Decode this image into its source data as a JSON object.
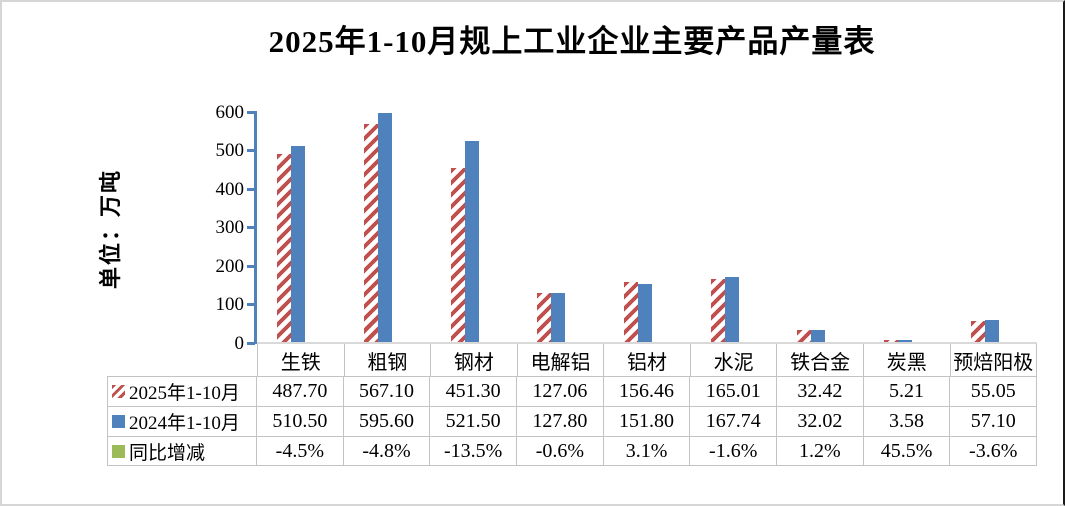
{
  "chart_data": {
    "type": "bar",
    "title": "2025年1-10月规上工业企业主要产品产量表",
    "ylabel": "单位：万吨",
    "xlabel": "",
    "ylim": [
      0,
      600
    ],
    "y_ticks": [
      0,
      100,
      200,
      300,
      400,
      500,
      600
    ],
    "grid": false,
    "legend_position": "data-table-left",
    "categories": [
      "生铁",
      "粗钢",
      "钢材",
      "电解铝",
      "铝材",
      "水泥",
      "铁合金",
      "炭黑",
      "预焙阳极"
    ],
    "series": [
      {
        "name": "2025年1-10月",
        "type": "bar",
        "style": "white-with-red-diagonal-hatch",
        "values": [
          487.7,
          567.1,
          451.3,
          127.06,
          156.46,
          165.01,
          32.42,
          5.21,
          55.05
        ]
      },
      {
        "name": "2024年1-10月",
        "type": "bar",
        "style": "solid-blue",
        "values": [
          510.5,
          595.6,
          521.5,
          127.8,
          151.8,
          167.74,
          32.02,
          3.58,
          57.1
        ]
      },
      {
        "name": "同比增减",
        "type": "table-only",
        "style": "solid-green-swatch",
        "values_percent": [
          "-4.5%",
          "-4.8%",
          "-13.5%",
          "-0.6%",
          "3.1%",
          "-1.6%",
          "1.2%",
          "45.5%",
          "-3.6%"
        ]
      }
    ]
  },
  "y_axis": {
    "tick_labels": [
      "600",
      "500",
      "400",
      "300",
      "200",
      "100",
      "0"
    ]
  },
  "table": {
    "header_categories": [
      "生铁",
      "粗钢",
      "钢材",
      "电解铝",
      "铝材",
      "水泥",
      "铁合金",
      "炭黑",
      "预焙阳极"
    ],
    "rows": [
      {
        "legend": "2025年1-10月",
        "swatch": "hatch",
        "cells": [
          "487.70",
          "567.10",
          "451.30",
          "127.06",
          "156.46",
          "165.01",
          "32.42",
          "5.21",
          "55.05"
        ]
      },
      {
        "legend": "2024年1-10月",
        "swatch": "blue",
        "cells": [
          "510.50",
          "595.60",
          "521.50",
          "127.80",
          "151.80",
          "167.74",
          "32.02",
          "3.58",
          "57.10"
        ]
      },
      {
        "legend": "同比增减",
        "swatch": "green",
        "cells": [
          "-4.5%",
          "-4.8%",
          "-13.5%",
          "-0.6%",
          "3.1%",
          "-1.6%",
          "1.2%",
          "45.5%",
          "-3.6%"
        ]
      }
    ]
  },
  "colors": {
    "bar_blue": "#4f81bd",
    "hatch_red": "#c0504d",
    "legend_green": "#9bbb59",
    "axis_blue": "#4f81bd",
    "axis_gray": "#d9d9d9",
    "table_border": "#c3c3c3"
  }
}
